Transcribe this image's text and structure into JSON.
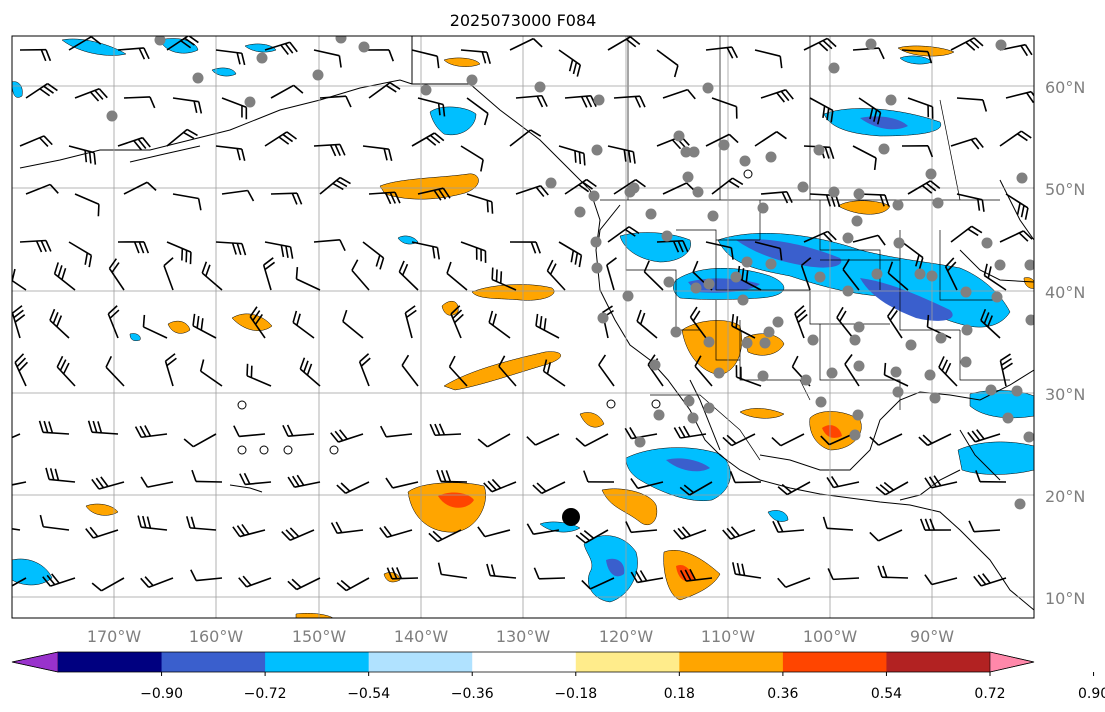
{
  "title": "2025073000 F084",
  "lat_labels": [
    "60°N",
    "50°N",
    "40°N",
    "30°N",
    "20°N",
    "10°N"
  ],
  "lon_labels": [
    "170°W",
    "160°W",
    "150°W",
    "140°W",
    "130°W",
    "120°W",
    "110°W",
    "100°W",
    "90°W"
  ],
  "colorbar": {
    "labels": [
      "−0.90",
      "−0.72",
      "−0.54",
      "−0.36",
      "−0.18",
      "0.18",
      "0.36",
      "0.54",
      "0.72",
      "0.90"
    ],
    "colors": [
      "#9932cc",
      "#000080",
      "#3a5fcd",
      "#00bfff",
      "#b0e2ff",
      "#ffffff",
      "#ffec8b",
      "#ffa500",
      "#ff4500",
      "#b22222",
      "#ff88aa"
    ]
  },
  "field_colors": {
    "pos_light": "#ffa500",
    "pos_mid": "#ff4500",
    "neg_light": "#00bfff",
    "neg_mid": "#3a5fcd"
  }
}
